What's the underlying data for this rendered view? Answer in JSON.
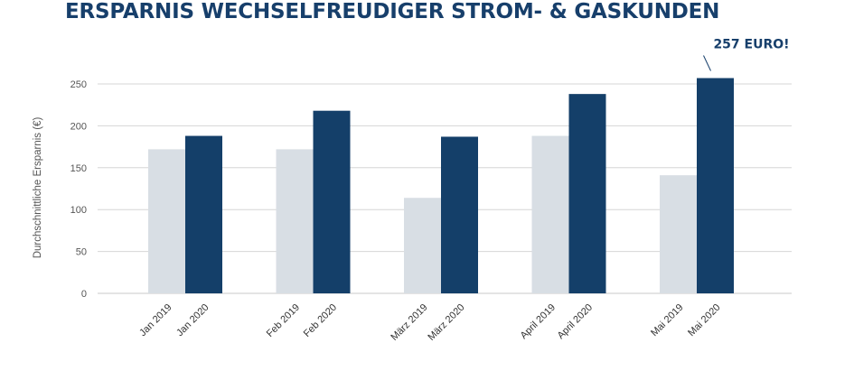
{
  "chart_data": {
    "type": "bar",
    "title": "ERSPARNIS WECHSELFREUDIGER STROM- & GASKUNDEN",
    "ylabel": "Durchschnittliche Ersparnis (€)",
    "xlabel": "",
    "ylim": [
      0,
      250
    ],
    "yticks": [
      0,
      50,
      100,
      150,
      200,
      250
    ],
    "grid": true,
    "categories": [
      "Jan 2019",
      "Jan 2020",
      "Feb 2019",
      "Feb 2020",
      "März 2019",
      "März 2020",
      "April 2019",
      "April 2020",
      "Mai 2019",
      "Mai 2020"
    ],
    "values": [
      172,
      188,
      172,
      218,
      114,
      187,
      188,
      238,
      141,
      257
    ],
    "bar_colors": [
      "#d8dee4",
      "#143f69",
      "#d8dee4",
      "#143f69",
      "#d8dee4",
      "#143f69",
      "#d8dee4",
      "#143f69",
      "#d8dee4",
      "#143f69"
    ],
    "annotation": "257 EURO!"
  }
}
